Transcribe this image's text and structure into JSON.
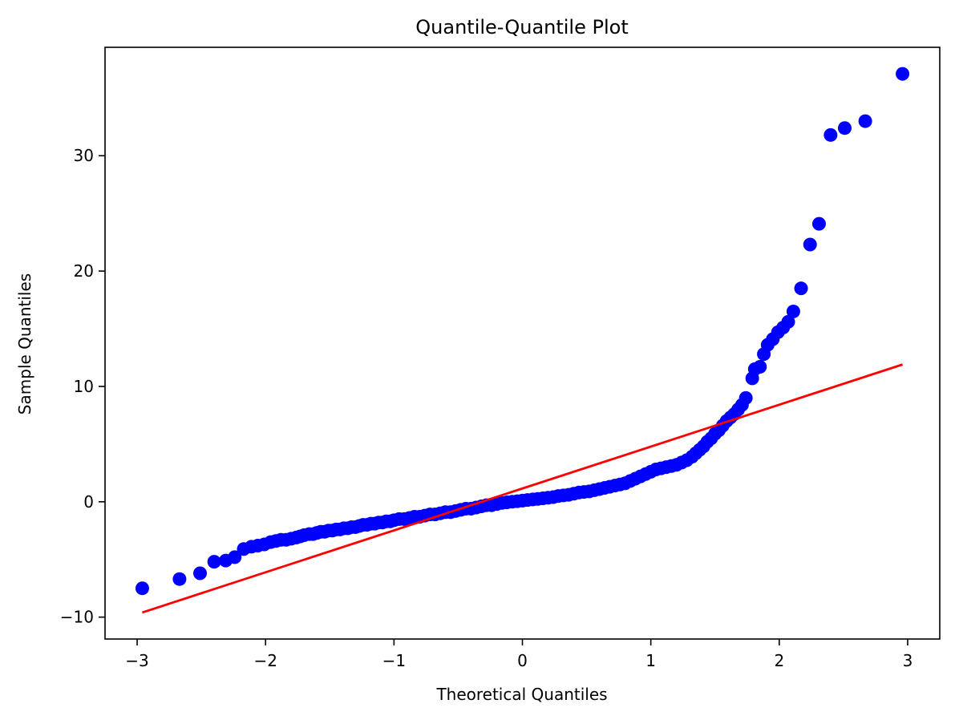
{
  "chart_data": {
    "type": "scatter",
    "title": "Quantile-Quantile Plot",
    "xlabel": "Theoretical Quantiles",
    "ylabel": "Sample Quantiles",
    "xlim": [
      -3.25,
      3.25
    ],
    "ylim": [
      -11.9,
      39.4
    ],
    "x_ticks": [
      -3,
      -2,
      -1,
      0,
      1,
      2,
      3
    ],
    "x_tick_labels": [
      "−3",
      "−2",
      "−1",
      "0",
      "1",
      "2",
      "3"
    ],
    "y_ticks": [
      -10,
      0,
      10,
      20,
      30
    ],
    "y_tick_labels": [
      "−10",
      "0",
      "10",
      "20",
      "30"
    ],
    "grid": false,
    "colors": {
      "points": "#0000ff",
      "line": "#ff0000"
    },
    "series": [
      {
        "type": "scatter",
        "points": [
          [
            -2.96,
            -7.5
          ],
          [
            -2.67,
            -6.7
          ],
          [
            -2.51,
            -6.2
          ],
          [
            -2.4,
            -5.2
          ],
          [
            -2.31,
            -5.1
          ],
          [
            -2.24,
            -4.8
          ],
          [
            -2.17,
            -4.1
          ],
          [
            -2.11,
            -3.9
          ],
          [
            -2.06,
            -3.8
          ],
          [
            -2.01,
            -3.7
          ],
          [
            -1.96,
            -3.5
          ],
          [
            -1.92,
            -3.4
          ],
          [
            -1.88,
            -3.3
          ],
          [
            -1.84,
            -3.3
          ],
          [
            -1.8,
            -3.2
          ],
          [
            -1.76,
            -3.1
          ],
          [
            -1.73,
            -3.0
          ],
          [
            -1.7,
            -2.9
          ],
          [
            -1.66,
            -2.8
          ],
          [
            -1.63,
            -2.8
          ],
          [
            -1.6,
            -2.7
          ],
          [
            -1.57,
            -2.6
          ],
          [
            -1.54,
            -2.6
          ],
          [
            -1.51,
            -2.5
          ],
          [
            -1.48,
            -2.5
          ],
          [
            -1.45,
            -2.4
          ],
          [
            -1.42,
            -2.4
          ],
          [
            -1.39,
            -2.3
          ],
          [
            -1.36,
            -2.3
          ],
          [
            -1.33,
            -2.2
          ],
          [
            -1.3,
            -2.2
          ],
          [
            -1.27,
            -2.1
          ],
          [
            -1.24,
            -2.0
          ],
          [
            -1.21,
            -2.0
          ],
          [
            -1.18,
            -1.9
          ],
          [
            -1.15,
            -1.9
          ],
          [
            -1.12,
            -1.8
          ],
          [
            -1.09,
            -1.8
          ],
          [
            -1.06,
            -1.7
          ],
          [
            -1.03,
            -1.7
          ],
          [
            -1.0,
            -1.6
          ],
          [
            -0.96,
            -1.5
          ],
          [
            -0.92,
            -1.5
          ],
          [
            -0.88,
            -1.4
          ],
          [
            -0.84,
            -1.3
          ],
          [
            -0.8,
            -1.3
          ],
          [
            -0.76,
            -1.2
          ],
          [
            -0.72,
            -1.1
          ],
          [
            -0.68,
            -1.1
          ],
          [
            -0.64,
            -1.0
          ],
          [
            -0.6,
            -0.9
          ],
          [
            -0.56,
            -0.9
          ],
          [
            -0.52,
            -0.8
          ],
          [
            -0.48,
            -0.7
          ],
          [
            -0.44,
            -0.6
          ],
          [
            -0.4,
            -0.6
          ],
          [
            -0.36,
            -0.5
          ],
          [
            -0.32,
            -0.4
          ],
          [
            -0.28,
            -0.3
          ],
          [
            -0.24,
            -0.3
          ],
          [
            -0.2,
            -0.2
          ],
          [
            -0.16,
            -0.1
          ],
          [
            -0.12,
            -0.05
          ],
          [
            -0.08,
            0.0
          ],
          [
            -0.04,
            0.05
          ],
          [
            0.0,
            0.1
          ],
          [
            0.04,
            0.15
          ],
          [
            0.08,
            0.2
          ],
          [
            0.12,
            0.25
          ],
          [
            0.16,
            0.3
          ],
          [
            0.2,
            0.35
          ],
          [
            0.24,
            0.4
          ],
          [
            0.28,
            0.5
          ],
          [
            0.32,
            0.55
          ],
          [
            0.36,
            0.6
          ],
          [
            0.4,
            0.7
          ],
          [
            0.44,
            0.8
          ],
          [
            0.48,
            0.85
          ],
          [
            0.52,
            0.9
          ],
          [
            0.56,
            1.0
          ],
          [
            0.6,
            1.1
          ],
          [
            0.64,
            1.2
          ],
          [
            0.68,
            1.3
          ],
          [
            0.72,
            1.4
          ],
          [
            0.76,
            1.5
          ],
          [
            0.8,
            1.6
          ],
          [
            0.84,
            1.8
          ],
          [
            0.88,
            2.0
          ],
          [
            0.92,
            2.2
          ],
          [
            0.96,
            2.4
          ],
          [
            1.0,
            2.6
          ],
          [
            1.04,
            2.8
          ],
          [
            1.08,
            2.9
          ],
          [
            1.12,
            3.0
          ],
          [
            1.16,
            3.1
          ],
          [
            1.2,
            3.2
          ],
          [
            1.24,
            3.4
          ],
          [
            1.28,
            3.6
          ],
          [
            1.32,
            3.9
          ],
          [
            1.35,
            4.2
          ],
          [
            1.38,
            4.5
          ],
          [
            1.41,
            4.8
          ],
          [
            1.44,
            5.2
          ],
          [
            1.47,
            5.5
          ],
          [
            1.5,
            5.9
          ],
          [
            1.53,
            6.2
          ],
          [
            1.56,
            6.6
          ],
          [
            1.59,
            7.0
          ],
          [
            1.62,
            7.3
          ],
          [
            1.65,
            7.6
          ],
          [
            1.68,
            8.0
          ],
          [
            1.71,
            8.4
          ],
          [
            1.74,
            9.0
          ],
          [
            1.79,
            10.7
          ],
          [
            1.81,
            11.5
          ],
          [
            1.85,
            11.7
          ],
          [
            1.88,
            12.8
          ],
          [
            1.91,
            13.6
          ],
          [
            1.95,
            14.1
          ],
          [
            1.99,
            14.7
          ],
          [
            2.03,
            15.1
          ],
          [
            2.07,
            15.6
          ],
          [
            2.11,
            16.5
          ],
          [
            2.17,
            18.5
          ],
          [
            2.24,
            22.3
          ],
          [
            2.31,
            24.1
          ],
          [
            2.4,
            31.8
          ],
          [
            2.51,
            32.4
          ],
          [
            2.67,
            33.0
          ],
          [
            2.96,
            37.1
          ]
        ]
      },
      {
        "type": "line",
        "points": [
          [
            -2.96,
            -9.6
          ],
          [
            2.96,
            11.9
          ]
        ]
      }
    ]
  }
}
